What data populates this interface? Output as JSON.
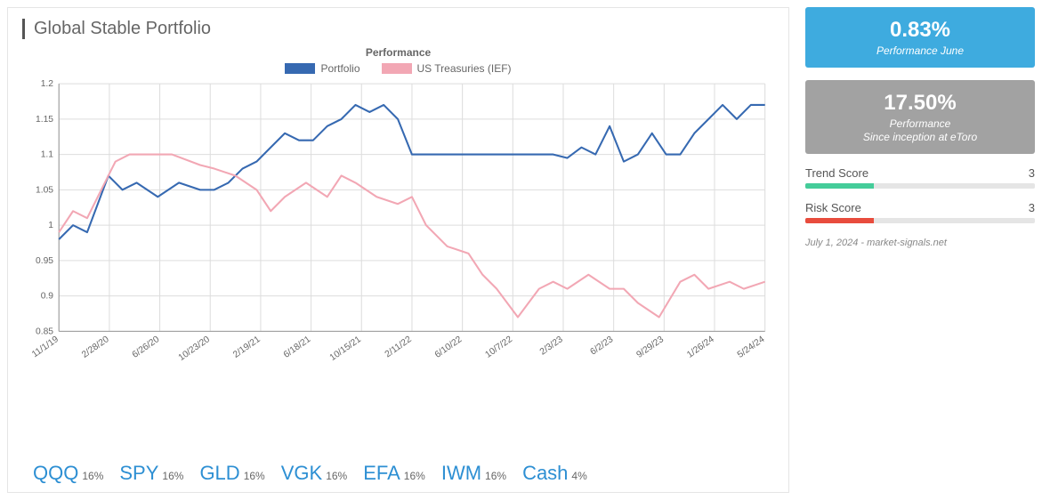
{
  "title": "Global Stable Portfolio",
  "chart": {
    "title": "Performance",
    "type": "line",
    "background_color": "#ffffff",
    "grid_color": "#dddddd",
    "axis_text_color": "#666666",
    "title_fontsize": 12,
    "axis_fontsize": 10,
    "line_width": 2,
    "ylim": [
      0.85,
      1.2
    ],
    "yticks": [
      0.85,
      0.9,
      0.95,
      1.0,
      1.05,
      1.1,
      1.15,
      1.2
    ],
    "xlabels": [
      "11/1/19",
      "2/28/20",
      "6/26/20",
      "10/23/20",
      "2/19/21",
      "6/18/21",
      "10/15/21",
      "2/11/22",
      "6/10/22",
      "10/7/22",
      "2/3/23",
      "6/2/23",
      "9/29/23",
      "1/26/24",
      "5/24/24"
    ],
    "series": [
      {
        "name": "Portfolio",
        "color": "#3669b1",
        "data_x": [
          0,
          0.02,
          0.04,
          0.07,
          0.09,
          0.11,
          0.14,
          0.17,
          0.2,
          0.22,
          0.24,
          0.26,
          0.28,
          0.3,
          0.32,
          0.34,
          0.36,
          0.38,
          0.4,
          0.42,
          0.44,
          0.46,
          0.48,
          0.5,
          0.65,
          0.7,
          0.72,
          0.74,
          0.76,
          0.78,
          0.8,
          0.82,
          0.84,
          0.86,
          0.88,
          0.9,
          0.92,
          0.94,
          0.96,
          0.98,
          1.0
        ],
        "data_y": [
          0.98,
          1.0,
          0.99,
          1.07,
          1.05,
          1.06,
          1.04,
          1.06,
          1.05,
          1.05,
          1.06,
          1.08,
          1.09,
          1.11,
          1.13,
          1.12,
          1.12,
          1.14,
          1.15,
          1.17,
          1.16,
          1.17,
          1.15,
          1.1,
          1.1,
          1.1,
          1.095,
          1.11,
          1.1,
          1.14,
          1.09,
          1.1,
          1.13,
          1.1,
          1.1,
          1.13,
          1.15,
          1.17,
          1.15,
          1.17,
          1.17
        ]
      },
      {
        "name": "US Treasuries (IEF)",
        "color": "#f2a7b4",
        "data_x": [
          0,
          0.02,
          0.04,
          0.06,
          0.08,
          0.1,
          0.13,
          0.16,
          0.2,
          0.22,
          0.25,
          0.28,
          0.3,
          0.32,
          0.35,
          0.38,
          0.4,
          0.42,
          0.45,
          0.48,
          0.5,
          0.52,
          0.55,
          0.58,
          0.6,
          0.62,
          0.65,
          0.68,
          0.7,
          0.72,
          0.75,
          0.78,
          0.8,
          0.82,
          0.85,
          0.88,
          0.9,
          0.92,
          0.95,
          0.97,
          1.0
        ],
        "data_y": [
          0.99,
          1.02,
          1.01,
          1.05,
          1.09,
          1.1,
          1.1,
          1.1,
          1.085,
          1.08,
          1.07,
          1.05,
          1.02,
          1.04,
          1.06,
          1.04,
          1.07,
          1.06,
          1.04,
          1.03,
          1.04,
          1.0,
          0.97,
          0.96,
          0.93,
          0.91,
          0.87,
          0.91,
          0.92,
          0.91,
          0.93,
          0.91,
          0.91,
          0.89,
          0.87,
          0.92,
          0.93,
          0.91,
          0.92,
          0.91,
          0.92
        ]
      }
    ]
  },
  "allocations": [
    {
      "ticker": "QQQ",
      "pct": "16%"
    },
    {
      "ticker": "SPY",
      "pct": "16%"
    },
    {
      "ticker": "GLD",
      "pct": "16%"
    },
    {
      "ticker": "VGK",
      "pct": "16%"
    },
    {
      "ticker": "EFA",
      "pct": "16%"
    },
    {
      "ticker": "IWM",
      "pct": "16%"
    },
    {
      "ticker": "Cash",
      "pct": "4%"
    }
  ],
  "allocation_style": {
    "ticker_color": "#2d8fd3",
    "ticker_fontsize": 22,
    "pct_color": "#666666",
    "pct_fontsize": 12
  },
  "metrics": {
    "perf_month": {
      "value": "0.83%",
      "label": "Performance June",
      "bg_color": "#3eabdf",
      "text_color": "#ffffff"
    },
    "perf_inception": {
      "value": "17.50%",
      "label": "Performance\nSince inception at eToro",
      "bg_color": "#a2a2a2",
      "text_color": "#ffffff"
    }
  },
  "scores": {
    "trend": {
      "label": "Trend Score",
      "value": 3,
      "max": 10,
      "bar_color": "#44cc99",
      "bg_color": "#e5e5e5"
    },
    "risk": {
      "label": "Risk Score",
      "value": 3,
      "max": 10,
      "bar_color": "#e84c3d",
      "bg_color": "#e5e5e5"
    }
  },
  "timestamp": "July 1, 2024 - market-signals.net"
}
